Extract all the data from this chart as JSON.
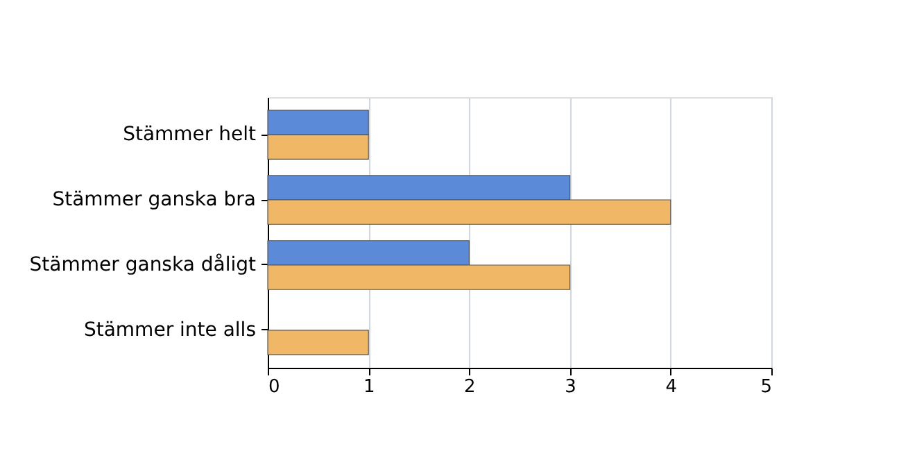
{
  "chart_data": {
    "type": "bar",
    "orientation": "horizontal",
    "categories": [
      "Stämmer helt",
      "Stämmer ganska bra",
      "Stämmer ganska dåligt",
      "Stämmer inte alls"
    ],
    "series": [
      {
        "color": "#5b8ad8",
        "values": [
          1,
          3,
          2,
          null
        ]
      },
      {
        "color": "#f0b766",
        "values": [
          1,
          4,
          3,
          1
        ]
      }
    ],
    "xlim": [
      0,
      5
    ],
    "xticks": [
      0,
      1,
      2,
      3,
      4,
      5
    ],
    "grid": "x",
    "legend": false
  }
}
